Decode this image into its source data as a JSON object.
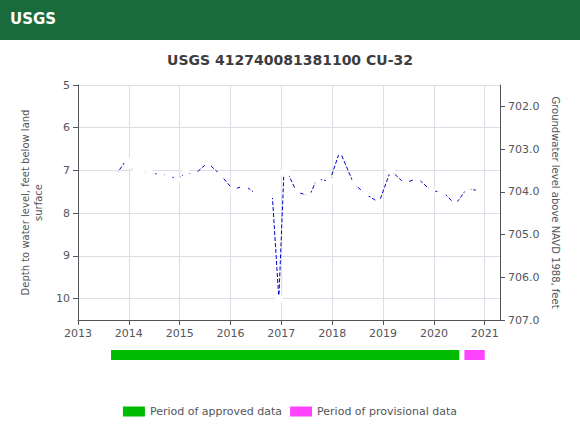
{
  "chart_data": {
    "type": "line",
    "title": "USGS 412740081381100 CU-32",
    "annotations": [
      {
        "text": "USGS",
        "color": "#1a6b3c"
      }
    ],
    "ylabel": "Depth to water level, feet below land\nsurface",
    "y2label": "Groundwater level above NAVD 1988, feet",
    "xlim": [
      2013.0,
      2021.3
    ],
    "xticks": [
      2013,
      2014,
      2015,
      2016,
      2017,
      2018,
      2019,
      2020,
      2021
    ],
    "ylim": [
      10.5,
      5.0
    ],
    "yticks": [
      5,
      6,
      7,
      8,
      9,
      10
    ],
    "y2lim": [
      707.0,
      701.5
    ],
    "y2ticks": [
      {
        "value": 707.0,
        "label": "707.0"
      },
      {
        "value": 706.0,
        "label": "706.0"
      },
      {
        "value": 705.0,
        "label": "705.0"
      },
      {
        "value": 704.0,
        "label": "704.0"
      },
      {
        "value": 703.0,
        "label": "703.0"
      },
      {
        "value": 702.0,
        "label": "702.0"
      }
    ],
    "grid": true,
    "x": [
      2013.75,
      2013.95,
      2014.0,
      2014.12,
      2014.25,
      2014.4,
      2014.62,
      2014.78,
      2014.95,
      2015.12,
      2015.28,
      2015.55,
      2015.8,
      2016.05,
      2016.28,
      2016.5,
      2016.62,
      2016.72,
      2016.82,
      2016.95,
      2017.05,
      2017.12,
      2017.3,
      2017.55,
      2017.7,
      2017.95,
      2018.15,
      2018.42,
      2018.65,
      2018.92,
      2019.15,
      2019.42,
      2019.68,
      2019.95,
      2020.18,
      2020.42,
      2020.65,
      2020.9
    ],
    "series": [
      {
        "color": "#0000cc",
        "marker": "open circle",
        "line_style": "dashed",
        "values": [
          7.1,
          6.75,
          6.88,
          7.05,
          7.05,
          7.05,
          7.1,
          7.1,
          7.22,
          7.05,
          7.1,
          6.82,
          7.1,
          7.45,
          7.35,
          7.55,
          7.48,
          7.55,
          7.55,
          10.0,
          7.05,
          7.05,
          7.5,
          7.6,
          7.2,
          7.25,
          6.55,
          7.3,
          7.55,
          7.75,
          7.0,
          7.3,
          7.18,
          7.48,
          7.5,
          7.8,
          7.42,
          7.48
        ]
      }
    ],
    "periods": [
      {
        "name": "Period of approved data",
        "color": "#00bb00",
        "start": 2013.65,
        "end": 2020.5
      },
      {
        "name": "Period of provisional data",
        "color": "#ff44ff",
        "start": 2020.6,
        "end": 2021.0
      }
    ],
    "legend": "bottom"
  }
}
